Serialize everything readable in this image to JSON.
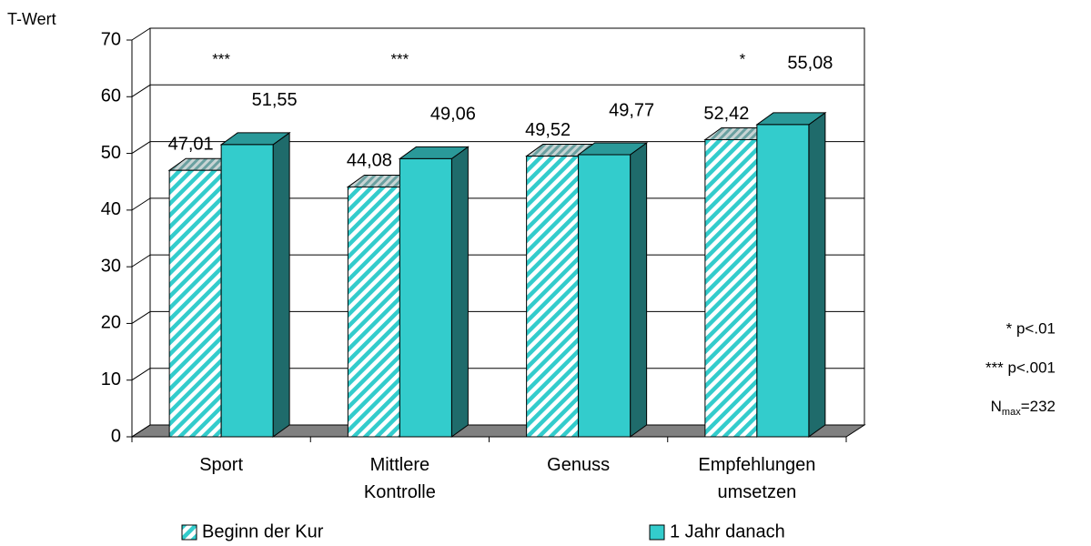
{
  "chart_data": {
    "type": "bar3d",
    "y_axis_label": "T-Wert",
    "categories": [
      [
        "Sport"
      ],
      [
        "Mittlere",
        "Kontrolle"
      ],
      [
        "Genuss"
      ],
      [
        "Empfehlungen",
        "umsetzen"
      ]
    ],
    "series": [
      {
        "name": "Beginn der Kur",
        "color": "#33cccc",
        "pattern": "hatch",
        "values": [
          47.01,
          44.08,
          49.52,
          52.42
        ],
        "value_labels": [
          "47,01",
          "44,08",
          "49,52",
          "52,42"
        ]
      },
      {
        "name": "1 Jahr danach",
        "color": "#33cccc",
        "pattern": "solid",
        "values": [
          51.55,
          49.06,
          49.77,
          55.08
        ],
        "value_labels": [
          "51,55",
          "49,06",
          "49,77",
          "55,08"
        ]
      }
    ],
    "significance": [
      "***",
      "***",
      null,
      "*"
    ],
    "ylim": [
      0,
      70
    ],
    "yticks": [
      0,
      10,
      20,
      30,
      40,
      50,
      60,
      70
    ],
    "grid": true,
    "notes": [
      "* p<.01",
      "*** p<.001"
    ],
    "n_note": {
      "symbol": "N",
      "subscript": "max",
      "text": "=232"
    }
  }
}
